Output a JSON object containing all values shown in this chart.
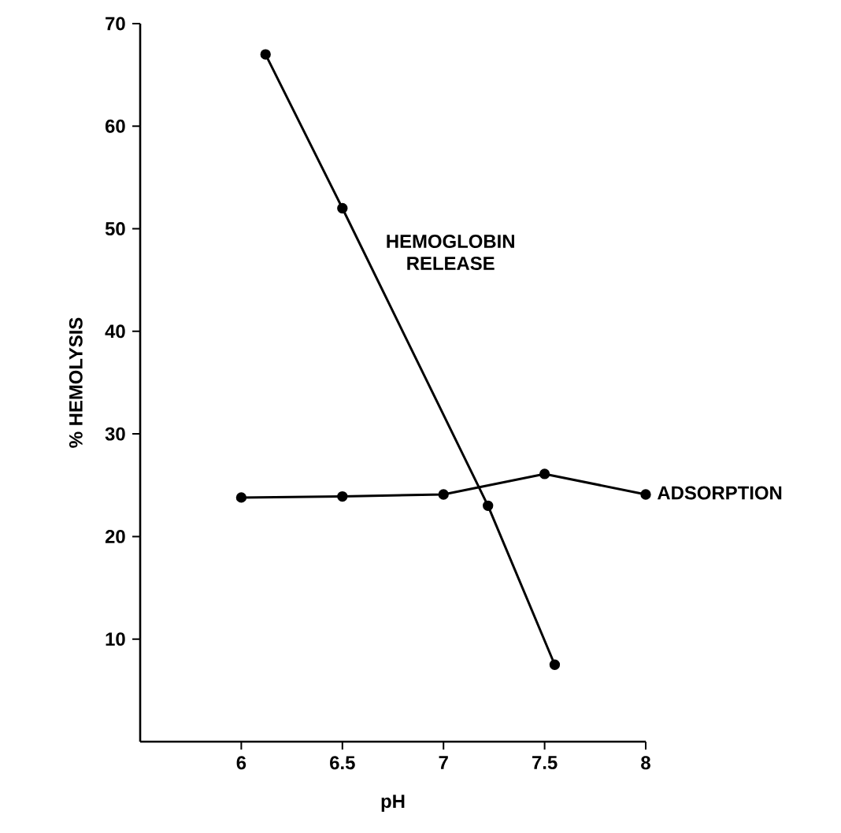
{
  "chart_data": {
    "type": "line",
    "xlabel": "pH",
    "ylabel": "% HEMOLYSIS",
    "xlim": [
      5.5,
      8
    ],
    "ylim": [
      0,
      70
    ],
    "xticks": [
      6,
      6.5,
      7,
      7.5,
      8
    ],
    "yticks": [
      10,
      20,
      30,
      40,
      50,
      60,
      70
    ],
    "grid": false,
    "legend": false,
    "marker": "circle",
    "line_style": "solid",
    "series": [
      {
        "name": "HEMOGLOBIN RELEASE",
        "color": "#000000",
        "x": [
          6.12,
          6.5,
          7.22,
          7.55
        ],
        "values": [
          67,
          52,
          23,
          7.5
        ]
      },
      {
        "name": "ADSORPTION",
        "color": "#000000",
        "x": [
          6,
          6.5,
          7,
          7.5,
          8
        ],
        "values": [
          23.8,
          23.9,
          24.1,
          26.1,
          24.1
        ]
      }
    ]
  }
}
